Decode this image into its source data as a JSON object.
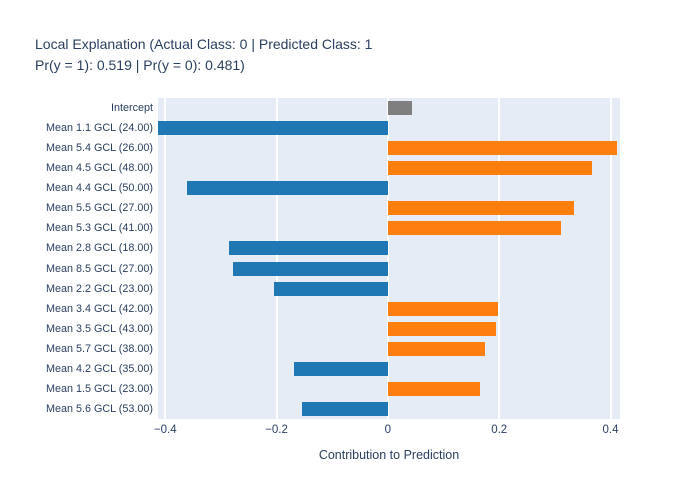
{
  "title": {
    "line1": "Local Explanation (Actual Class: 0 | Predicted Class: 1",
    "line2": "Pr(y = 1): 0.519 | Pr(y = 0): 0.481)"
  },
  "chart_data": {
    "type": "bar",
    "orientation": "horizontal",
    "title": "Local Explanation (Actual Class: 0 | Predicted Class: 1 Pr(y = 1): 0.519 | Pr(y = 0): 0.481)",
    "xlabel": "Contribution to Prediction",
    "ylabel": "",
    "legend_position": "none",
    "grid": "vertical-white-gridlines",
    "xlim": [
      -0.413,
      0.417
    ],
    "xticks": [
      {
        "value": -0.4,
        "label": "−0.4"
      },
      {
        "value": -0.2,
        "label": "−0.2"
      },
      {
        "value": 0,
        "label": "0"
      },
      {
        "value": 0.2,
        "label": "0.2"
      },
      {
        "value": 0.4,
        "label": "0.4"
      }
    ],
    "categories": [
      "Intercept",
      "Mean 1.1 GCL (24.00)",
      "Mean 5.4 GCL (26.00)",
      "Mean 4.5 GCL (48.00)",
      "Mean 4.4 GCL (50.00)",
      "Mean 5.5 GCL (27.00)",
      "Mean 5.3 GCL (41.00)",
      "Mean 2.8 GCL (18.00)",
      "Mean 8.5 GCL (27.00)",
      "Mean 2.2 GCL (23.00)",
      "Mean 3.4 GCL (42.00)",
      "Mean 3.5 GCL (43.00)",
      "Mean 5.7 GCL (38.00)",
      "Mean 4.2 GCL (35.00)",
      "Mean 1.5 GCL (23.00)",
      "Mean 5.6 GCL (53.00)"
    ],
    "values": [
      0.043,
      -0.413,
      0.412,
      0.366,
      -0.361,
      0.334,
      0.311,
      -0.286,
      -0.279,
      -0.205,
      0.198,
      0.195,
      0.175,
      -0.168,
      0.166,
      -0.154
    ],
    "colors": {
      "intercept": "#7f7f7f",
      "positive": "#ff7f0e",
      "negative": "#1f77b4",
      "plot_background": "#e5ecf6",
      "gridline": "#ffffff",
      "text": "#2a3f5f",
      "page_background": "#ffffff"
    }
  }
}
